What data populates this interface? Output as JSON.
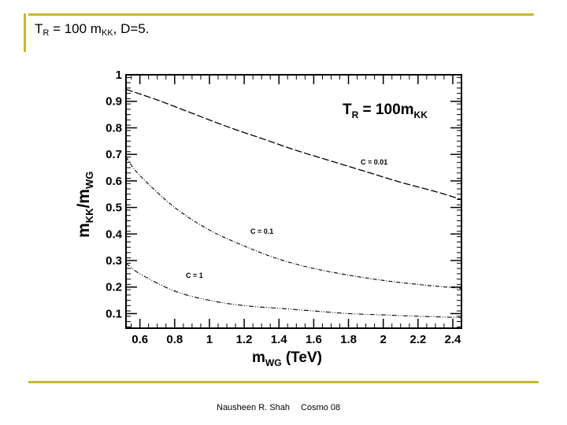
{
  "slide": {
    "title_main": "T",
    "title_sub": "R",
    "title_rest": " = 100 m",
    "title_sub2": "KK",
    "title_end": ", D=5.",
    "footer_author": "Nausheen R. Shah",
    "footer_event": "Cosmo 08"
  },
  "colors": {
    "accent": "#c8b631",
    "ink": "#000000"
  },
  "chart_data": {
    "type": "line",
    "title_main": "T",
    "title_sub": "R",
    "title_mid": " = 100m",
    "title_sub2": "KK",
    "xlabel_main": "m",
    "xlabel_sub": "WG",
    "xlabel_unit": " (TeV)",
    "ylabel_main": "m",
    "ylabel_sub": "KK",
    "ylabel_slash": "/m",
    "ylabel_sub2": "WG",
    "xlim": [
      0.52,
      2.45
    ],
    "ylim": [
      0.045,
      1.0
    ],
    "x_ticks": [
      0.6,
      0.8,
      1,
      1.2,
      1.4,
      1.6,
      1.8,
      2,
      2.2,
      2.4
    ],
    "x_tick_labels": [
      "0.6",
      "0.8",
      "1",
      "1.2",
      "1.4",
      "1.6",
      "1.8",
      "2",
      "2.2",
      "2.4"
    ],
    "y_ticks": [
      0.1,
      0.2,
      0.3,
      0.4,
      0.5,
      0.6,
      0.7,
      0.8,
      0.9,
      1
    ],
    "y_tick_labels": [
      "0.1",
      "0.2",
      "0.3",
      "0.4",
      "0.5",
      "0.6",
      "0.7",
      "0.8",
      "0.9",
      "1"
    ],
    "series": [
      {
        "name": "C = 0.01",
        "style": "dash",
        "x": [
          0.52,
          0.7,
          0.9,
          1.1,
          1.3,
          1.5,
          1.7,
          1.9,
          2.1,
          2.3,
          2.45
        ],
        "y": [
          0.945,
          0.905,
          0.855,
          0.805,
          0.76,
          0.715,
          0.675,
          0.635,
          0.595,
          0.56,
          0.53
        ]
      },
      {
        "name": "C = 0.1",
        "style": "dashdot",
        "x": [
          0.52,
          0.6,
          0.8,
          1.0,
          1.2,
          1.4,
          1.6,
          1.8,
          2.0,
          2.2,
          2.45
        ],
        "y": [
          0.69,
          0.62,
          0.5,
          0.415,
          0.355,
          0.305,
          0.27,
          0.245,
          0.225,
          0.21,
          0.195
        ]
      },
      {
        "name": "C = 1",
        "style": "dashdotdot",
        "x": [
          0.52,
          0.6,
          0.8,
          1.0,
          1.2,
          1.4,
          1.6,
          1.8,
          2.0,
          2.2,
          2.45
        ],
        "y": [
          0.29,
          0.25,
          0.185,
          0.15,
          0.13,
          0.12,
          0.11,
          0.1,
          0.095,
          0.09,
          0.085
        ]
      }
    ]
  }
}
